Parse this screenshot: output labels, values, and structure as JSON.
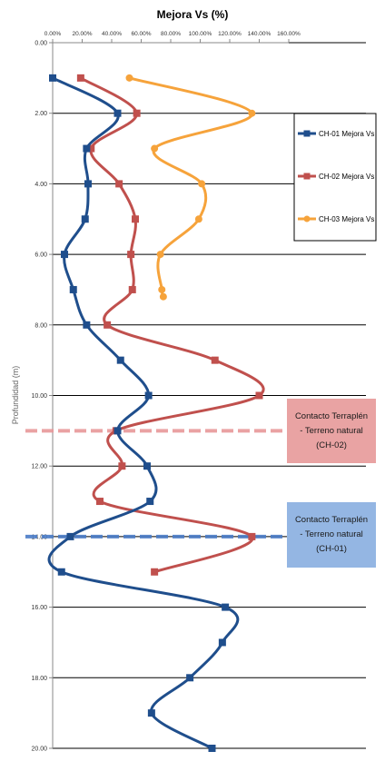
{
  "chart_data": {
    "type": "line",
    "title": "Mejora Vs (%)",
    "xlabel": "",
    "ylabel": "Profundidad (m)",
    "xlim": [
      0,
      160
    ],
    "ylim": [
      0,
      20
    ],
    "y_inverted": true,
    "x_axis_position": "top",
    "x_ticks": [
      0,
      20,
      40,
      60,
      80,
      100,
      120,
      140,
      160
    ],
    "x_tick_labels": [
      "0.00%",
      "20.00%",
      "40.00%",
      "60.00%",
      "80.00%",
      "100.00%",
      "120.00%",
      "140.00%",
      "160.00%"
    ],
    "y_ticks": [
      0,
      2,
      4,
      6,
      8,
      10,
      12,
      14,
      16,
      18,
      20
    ],
    "y_tick_labels": [
      "0.00",
      "2.00",
      "4.00",
      "6.00",
      "8.00",
      "10.00",
      "12.00",
      "14.00",
      "16.00",
      "18.00",
      "20.00"
    ],
    "grid": "horizontal",
    "legend_position": "right",
    "series": [
      {
        "name": "CH-01 Mejora Vs",
        "color": "#1f4e8c",
        "marker": "square",
        "points": [
          {
            "x": 0,
            "y": 1
          },
          {
            "x": 44,
            "y": 2
          },
          {
            "x": 23,
            "y": 3
          },
          {
            "x": 24,
            "y": 4
          },
          {
            "x": 22,
            "y": 5
          },
          {
            "x": 8,
            "y": 6
          },
          {
            "x": 14,
            "y": 7
          },
          {
            "x": 23,
            "y": 8
          },
          {
            "x": 46,
            "y": 9
          },
          {
            "x": 65,
            "y": 10
          },
          {
            "x": 44,
            "y": 11
          },
          {
            "x": 64,
            "y": 12
          },
          {
            "x": 66,
            "y": 13
          },
          {
            "x": 12,
            "y": 14
          },
          {
            "x": 6,
            "y": 15
          },
          {
            "x": 117,
            "y": 16
          },
          {
            "x": 115,
            "y": 17
          },
          {
            "x": 93,
            "y": 18
          },
          {
            "x": 67,
            "y": 19
          },
          {
            "x": 108,
            "y": 20
          }
        ]
      },
      {
        "name": "CH-02 Mejora Vs",
        "color": "#c0504d",
        "marker": "square",
        "points": [
          {
            "x": 19,
            "y": 1
          },
          {
            "x": 57,
            "y": 2
          },
          {
            "x": 26,
            "y": 3
          },
          {
            "x": 45,
            "y": 4
          },
          {
            "x": 56,
            "y": 5
          },
          {
            "x": 53,
            "y": 6
          },
          {
            "x": 54,
            "y": 7
          },
          {
            "x": 37,
            "y": 8
          },
          {
            "x": 110,
            "y": 9
          },
          {
            "x": 140,
            "y": 10
          },
          {
            "x": 43,
            "y": 11
          },
          {
            "x": 47,
            "y": 12
          },
          {
            "x": 32,
            "y": 13
          },
          {
            "x": 135,
            "y": 14
          },
          {
            "x": 69,
            "y": 15
          }
        ]
      },
      {
        "name": "CH-03 Mejora Vs",
        "color": "#f6a33b",
        "marker": "circle",
        "points": [
          {
            "x": 52,
            "y": 1
          },
          {
            "x": 135,
            "y": 2
          },
          {
            "x": 69,
            "y": 3
          },
          {
            "x": 101,
            "y": 4
          },
          {
            "x": 99,
            "y": 5
          },
          {
            "x": 73,
            "y": 6
          },
          {
            "x": 74,
            "y": 7
          },
          {
            "x": 75,
            "y": 7.2
          }
        ]
      }
    ],
    "annotations": [
      {
        "text": "Contacto Terraplén - Terreno natural (CH-02)",
        "depth": 11,
        "color": "#e8989a",
        "box_color": "#e9a3a3"
      },
      {
        "text": "Contacto Terraplén - Terreno natural (CH-01)",
        "depth": 14,
        "color": "#4a7cc7",
        "box_color": "#94b6e3"
      }
    ]
  }
}
